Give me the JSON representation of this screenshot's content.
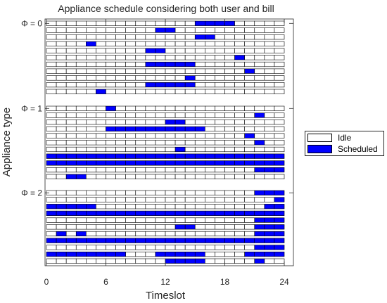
{
  "chart_data": {
    "type": "heatmap",
    "title": "Appliance schedule considering both user and bill",
    "xlabel": "Timeslot",
    "ylabel": "Appliance type",
    "xlim": [
      0,
      24
    ],
    "xticks": [
      "0",
      "6",
      "12",
      "18",
      "24"
    ],
    "group_labels": [
      "Φ = 0",
      "Φ = 1",
      "Φ = 2"
    ],
    "slots_per_row": 24,
    "colors": {
      "idle": "#ffffff",
      "scheduled": "#0000ff",
      "edge": "#000000"
    },
    "legend": {
      "position": "right",
      "entries": [
        "Idle",
        "Scheduled"
      ]
    },
    "groups": [
      {
        "label": "Φ = 0",
        "rows": [
          [
            [
              15,
              19
            ]
          ],
          [
            [
              11,
              13
            ]
          ],
          [
            [
              15,
              17
            ]
          ],
          [
            [
              4,
              5
            ]
          ],
          [
            [
              10,
              12
            ]
          ],
          [
            [
              19,
              20
            ]
          ],
          [
            [
              10,
              15
            ]
          ],
          [
            [
              20,
              21
            ]
          ],
          [
            [
              14,
              15
            ]
          ],
          [
            [
              10,
              15
            ]
          ],
          [
            [
              5,
              6
            ]
          ]
        ]
      },
      {
        "label": "Φ = 1",
        "rows": [
          [
            [
              6,
              7
            ]
          ],
          [
            [
              21,
              22
            ]
          ],
          [
            [
              12,
              14
            ]
          ],
          [
            [
              6,
              16
            ]
          ],
          [
            [
              20,
              21
            ]
          ],
          [
            [
              21,
              22
            ]
          ],
          [
            [
              13,
              14
            ]
          ],
          [
            [
              0,
              24
            ]
          ],
          [
            [
              0,
              24
            ]
          ],
          [
            [
              21,
              24
            ]
          ],
          [
            [
              2,
              4
            ]
          ]
        ]
      },
      {
        "label": "Φ = 2",
        "rows": [
          [
            [
              21,
              24
            ]
          ],
          [
            [
              23,
              24
            ]
          ],
          [
            [
              0,
              5
            ],
            [
              22,
              24
            ]
          ],
          [
            [
              0,
              24
            ]
          ],
          [
            [
              21,
              24
            ]
          ],
          [
            [
              13,
              15
            ],
            [
              21,
              24
            ]
          ],
          [
            [
              1,
              2
            ],
            [
              3,
              4
            ],
            [
              21,
              24
            ]
          ],
          [
            [
              0,
              24
            ]
          ],
          [
            [
              21,
              24
            ]
          ],
          [
            [
              0,
              8
            ],
            [
              11,
              16
            ],
            [
              20,
              24
            ]
          ],
          [
            [
              12,
              16
            ],
            [
              21,
              22
            ]
          ]
        ]
      }
    ]
  }
}
